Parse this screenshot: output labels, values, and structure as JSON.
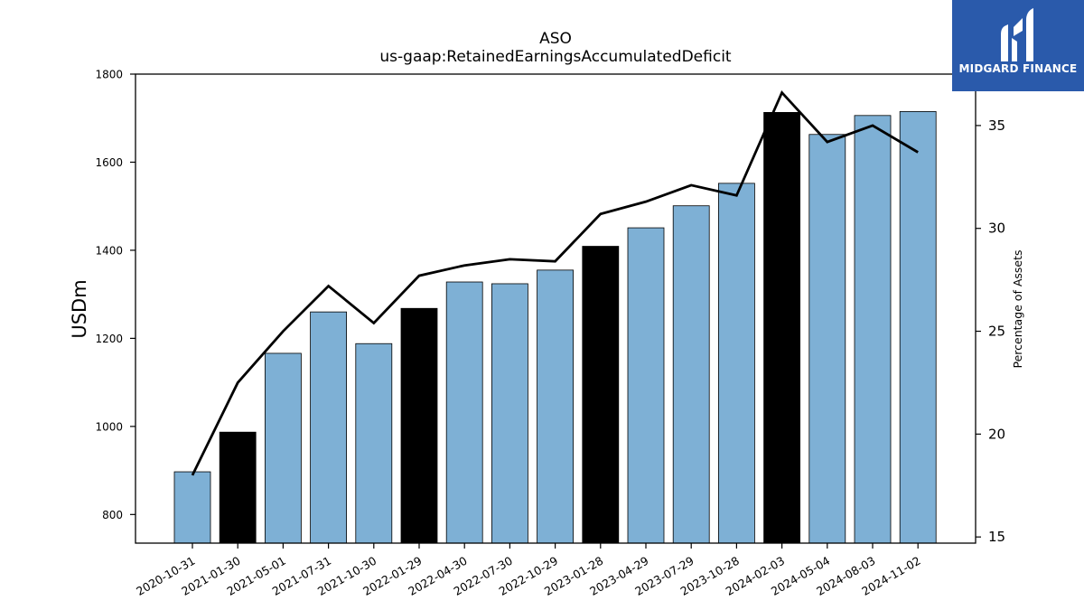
{
  "chart_data": {
    "type": "bar",
    "title": "ASO",
    "subtitle": "us-gaap:RetainedEarningsAccumulatedDeficit",
    "ylabel": "USDm",
    "ylabel_right": "Percentage of Assets",
    "categories": [
      "2020-10-31",
      "2021-01-30",
      "2021-05-01",
      "2021-07-31",
      "2021-10-30",
      "2022-01-29",
      "2022-04-30",
      "2022-07-30",
      "2022-10-29",
      "2023-01-28",
      "2023-04-29",
      "2023-07-29",
      "2023-10-28",
      "2024-02-03",
      "2024-05-04",
      "2024-08-03",
      "2024-11-02"
    ],
    "series": [
      {
        "type": "bar",
        "values": [
          897,
          987,
          1166,
          1260,
          1188,
          1268,
          1328,
          1324,
          1355,
          1409,
          1451,
          1501,
          1552,
          1713,
          1663,
          1706,
          1715
        ]
      },
      {
        "type": "line",
        "axis": "right",
        "values": [
          18.0,
          22.5,
          25.0,
          27.2,
          25.4,
          27.7,
          28.2,
          28.5,
          28.4,
          30.7,
          31.3,
          32.1,
          31.6,
          36.6,
          34.2,
          35.0,
          33.7
        ]
      }
    ],
    "highlight_indices": [
      1,
      5,
      9,
      13
    ],
    "ylim": [
      735,
      1800
    ],
    "ylim_right": [
      14.7,
      37.5
    ],
    "yticks": [
      800,
      1000,
      1200,
      1400,
      1600,
      1800
    ],
    "yticks_right": [
      15,
      20,
      25,
      30,
      35
    ],
    "colors": {
      "bar": "#7eb0d5",
      "highlight": "#000000",
      "line": "#000000"
    },
    "grid": false,
    "legend": "none"
  },
  "logo": {
    "text": "MIDGARD FINANCE",
    "background": "#2a5aab"
  }
}
